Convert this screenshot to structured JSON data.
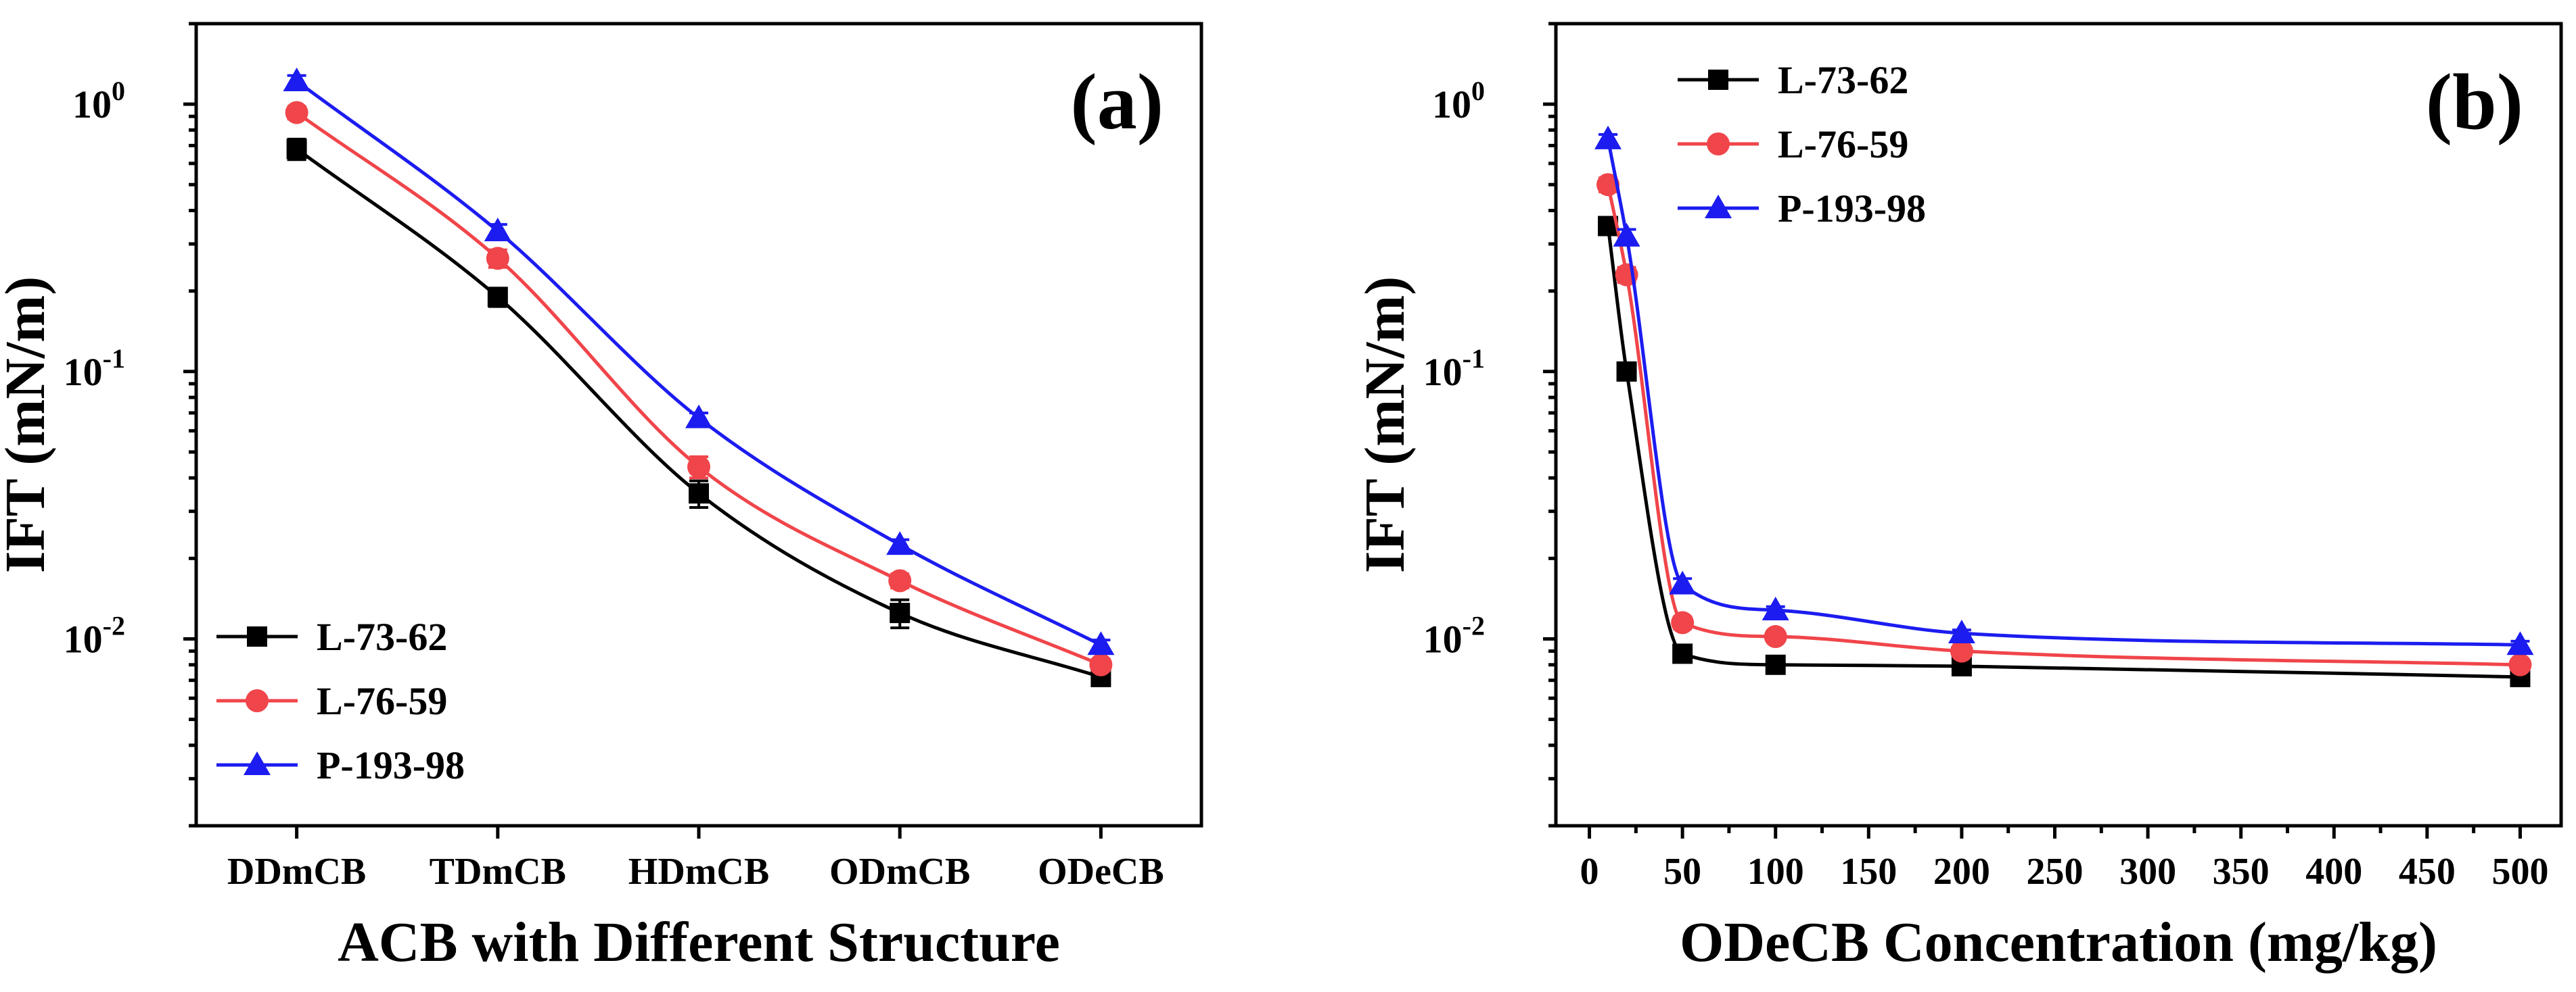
{
  "figure": {
    "panels": [
      {
        "label": "(a)"
      },
      {
        "label": "(b)"
      }
    ]
  },
  "chart_data": [
    {
      "type": "line",
      "panel_label": "(a)",
      "xlabel": "ACB with Different Structure",
      "ylabel": "IFT (mN/m)",
      "y_scale": "log",
      "ylim": [
        0.002,
        2.0
      ],
      "y_ticks": [
        0.01,
        0.1,
        1.0
      ],
      "y_tick_labels": [
        [
          "10",
          "-2"
        ],
        [
          "10",
          "-1"
        ],
        [
          "10",
          "0"
        ]
      ],
      "categories": [
        "DDmCB",
        "TDmCB",
        "HDmCB",
        "ODmCB",
        "ODeCB"
      ],
      "legend_position": "bottom-left",
      "series": [
        {
          "name": "L-73-62",
          "color": "#000000",
          "marker": "square",
          "values": [
            0.68,
            0.19,
            0.035,
            0.0125,
            0.0072
          ],
          "errors": [
            0.06,
            0.015,
            0.004,
            0.0015,
            0.0004
          ]
        },
        {
          "name": "L-76-59",
          "color": "#f0454a",
          "marker": "circle",
          "values": [
            0.93,
            0.265,
            0.044,
            0.0165,
            0.008
          ],
          "errors": [
            0.05,
            0.02,
            0.004,
            0.001,
            0.0004
          ]
        },
        {
          "name": "P-193-98",
          "color": "#1c1cf0",
          "marker": "triangle",
          "values": [
            1.22,
            0.335,
            0.067,
            0.0225,
            0.0095
          ],
          "errors": [
            0.06,
            0.02,
            0.003,
            0.001,
            0.0004
          ]
        }
      ]
    },
    {
      "type": "line",
      "panel_label": "(b)",
      "xlabel": "ODeCB Concentration (mg/kg)",
      "ylabel": "IFT (mN/m)",
      "y_scale": "log",
      "ylim": [
        0.002,
        2.0
      ],
      "y_ticks": [
        0.01,
        0.1,
        1.0
      ],
      "y_tick_labels": [
        [
          "10",
          "-2"
        ],
        [
          "10",
          "-1"
        ],
        [
          "10",
          "0"
        ]
      ],
      "xlim": [
        -18,
        522
      ],
      "x_ticks": [
        0,
        50,
        100,
        150,
        200,
        250,
        300,
        350,
        400,
        450,
        500
      ],
      "legend_position": "top-left",
      "series": [
        {
          "name": "L-73-62",
          "color": "#000000",
          "marker": "square",
          "x": [
            10,
            20,
            50,
            100,
            200,
            500
          ],
          "values": [
            0.35,
            0.1,
            0.0088,
            0.008,
            0.0079,
            0.0072
          ],
          "errors": [
            0.02,
            0.006,
            0.0006,
            0.0004,
            0.0003,
            0.0003
          ]
        },
        {
          "name": "L-76-59",
          "color": "#f0454a",
          "marker": "circle",
          "x": [
            10,
            20,
            50,
            100,
            200,
            500
          ],
          "values": [
            0.5,
            0.23,
            0.0115,
            0.0102,
            0.009,
            0.008
          ],
          "errors": [
            0.03,
            0.015,
            0.0006,
            0.0004,
            0.0003,
            0.0003
          ]
        },
        {
          "name": "P-193-98",
          "color": "#1c1cf0",
          "marker": "triangle",
          "x": [
            10,
            20,
            50,
            100,
            200,
            500
          ],
          "values": [
            0.74,
            0.32,
            0.016,
            0.0128,
            0.0105,
            0.0095
          ],
          "errors": [
            0.03,
            0.02,
            0.0008,
            0.0004,
            0.0003,
            0.0003
          ]
        }
      ]
    }
  ]
}
